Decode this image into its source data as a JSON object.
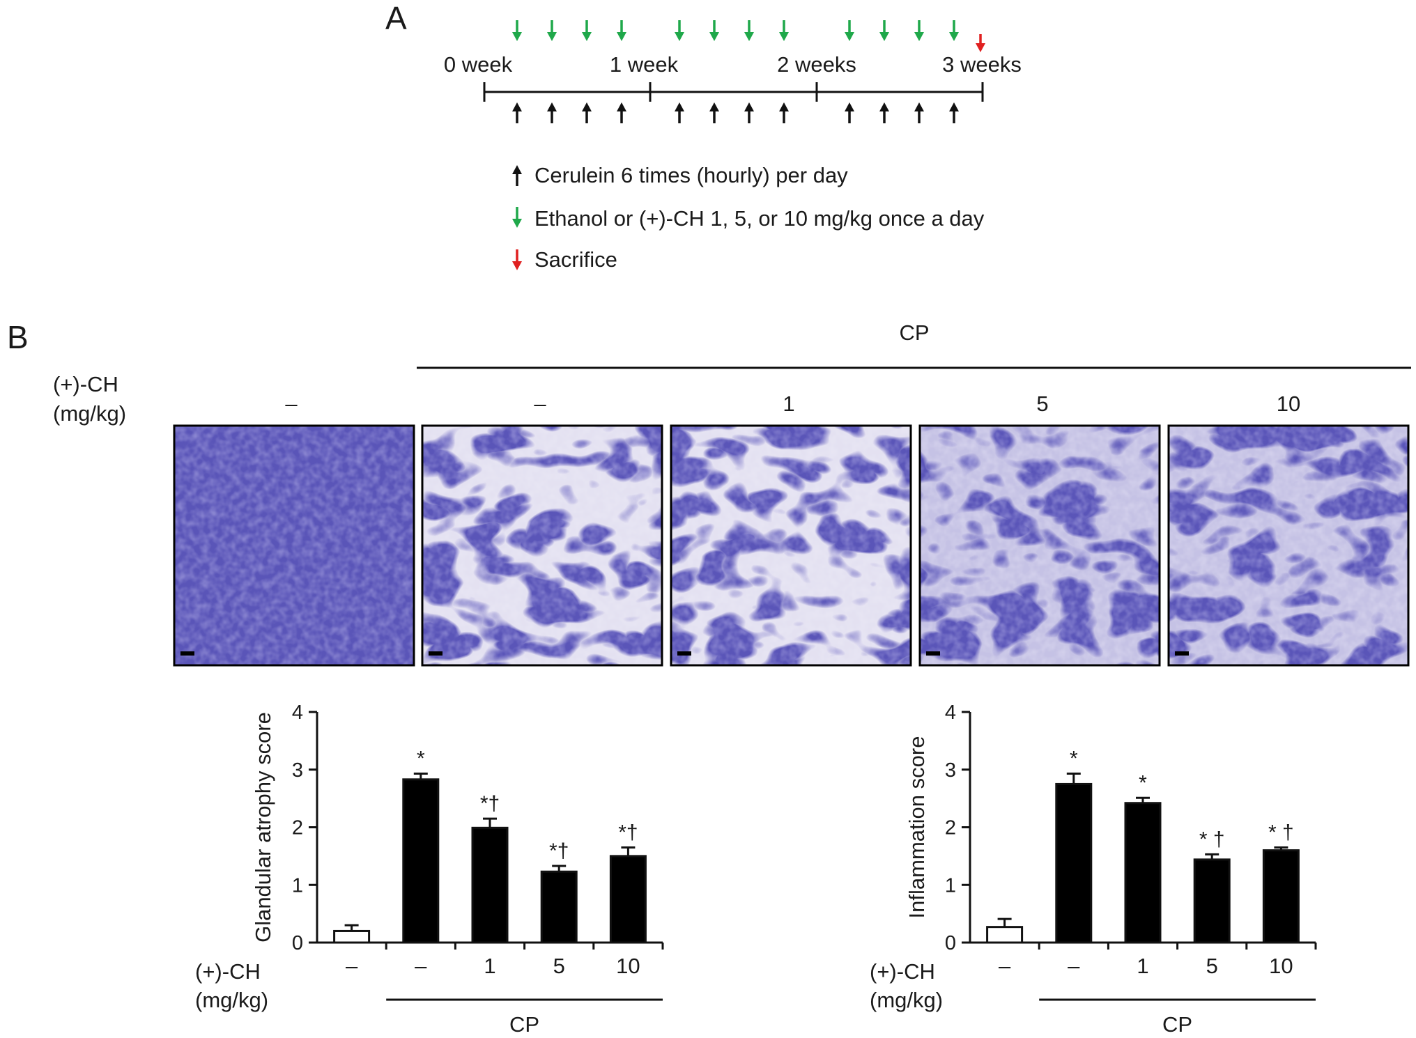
{
  "panel_a": {
    "letter": "A",
    "timeline_labels": [
      "0 week",
      "1 week",
      "2 weeks",
      "3 weeks"
    ],
    "legend": [
      {
        "text": "Cerulein 6 times (hourly) per day",
        "arrow": "up",
        "color": "#111111"
      },
      {
        "text": "Ethanol or (+)-CH 1, 5, or 10 mg/kg once a day",
        "arrow": "down",
        "color": "#1fa84a"
      },
      {
        "text": "Sacrifice",
        "arrow": "down",
        "color": "#e02020"
      }
    ],
    "colors": {
      "cerulein": "#111111",
      "treatment": "#1fa84a",
      "sacrifice": "#e02020"
    }
  },
  "panel_b": {
    "letter": "B",
    "group_label": "CP",
    "row_label_1": "(+)-CH",
    "row_label_2": "(mg/kg)",
    "dose_labels": [
      "–",
      "–",
      "1",
      "5",
      "10"
    ],
    "image_colors": {
      "tissue": "#5a55b8",
      "stroma": "#e4e0ef"
    }
  },
  "chart_data": [
    {
      "type": "bar",
      "categories": [
        "–",
        "–",
        "1",
        "5",
        "10"
      ],
      "values": [
        0.2,
        2.83,
        1.99,
        1.23,
        1.5
      ],
      "errors": [
        0.1,
        0.1,
        0.16,
        0.1,
        0.15
      ],
      "significance": [
        "",
        "*",
        "*†",
        "*†",
        "*†"
      ],
      "bar_fill": [
        "#ffffff",
        "#000000",
        "#000000",
        "#000000",
        "#000000"
      ],
      "ylabel": "Glandular atrophy score",
      "ylim": [
        0,
        4
      ],
      "yticks": [
        0,
        1,
        2,
        3,
        4
      ],
      "xlabel_1": "(+)-CH",
      "xlabel_2": "(mg/kg)",
      "group_label": "CP"
    },
    {
      "type": "bar",
      "categories": [
        "–",
        "–",
        "1",
        "5",
        "10"
      ],
      "values": [
        0.27,
        2.75,
        2.42,
        1.44,
        1.6
      ],
      "errors": [
        0.14,
        0.18,
        0.09,
        0.09,
        0.05
      ],
      "significance": [
        "",
        "*",
        "*",
        "* †",
        "* †"
      ],
      "bar_fill": [
        "#ffffff",
        "#000000",
        "#000000",
        "#000000",
        "#000000"
      ],
      "ylabel": "Inflammation score",
      "ylim": [
        0,
        4
      ],
      "yticks": [
        0,
        1,
        2,
        3,
        4
      ],
      "xlabel_1": "(+)-CH",
      "xlabel_2": "(mg/kg)",
      "group_label": "CP"
    }
  ]
}
